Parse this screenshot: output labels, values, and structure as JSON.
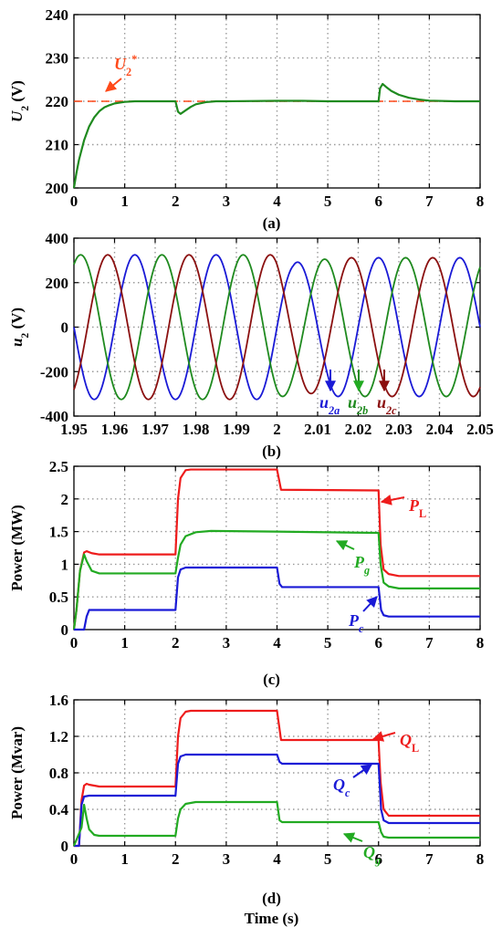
{
  "chart_data": [
    {
      "type": "line",
      "caption": "(a)",
      "ylabel_main": "U",
      "ylabel_sub": "2",
      "ylabel_unit": " (V)",
      "xlim": [
        0,
        8
      ],
      "ylim": [
        200,
        240
      ],
      "xticks": [
        "0",
        "1",
        "2",
        "3",
        "4",
        "5",
        "6",
        "7",
        "8"
      ],
      "yticks": [
        "200",
        "210",
        "220",
        "230",
        "240"
      ],
      "grid": true,
      "colors": {
        "voltage": "#1f8a1f",
        "reference": "#ff4a1a"
      },
      "reference": {
        "main": "U",
        "sub": "2",
        "sup": "*",
        "value": 220
      },
      "series": [
        {
          "x": [
            0,
            0.05,
            0.1,
            0.2,
            0.3,
            0.4,
            0.5,
            0.6,
            0.7,
            0.8,
            1.0,
            1.2,
            1.5,
            2.0,
            2.05,
            2.1,
            2.2,
            2.3,
            2.4,
            2.6,
            2.8,
            3.0,
            4.0,
            4.5,
            5.0,
            6.0,
            6.03,
            6.08,
            6.15,
            6.25,
            6.4,
            6.6,
            6.8,
            7.0,
            7.5,
            8.0
          ],
          "values": [
            200,
            203.5,
            206.5,
            211,
            214.2,
            216.3,
            217.7,
            218.6,
            219.1,
            219.5,
            219.85,
            220,
            220,
            220,
            217.6,
            217.1,
            217.9,
            218.7,
            219.3,
            219.8,
            220,
            220,
            220.1,
            220.1,
            220,
            220,
            223,
            224,
            223.3,
            222.4,
            221.5,
            220.8,
            220.4,
            220.15,
            220,
            220
          ]
        }
      ]
    },
    {
      "type": "line",
      "caption": "(b)",
      "ylabel_main": "u",
      "ylabel_sub": "2",
      "ylabel_unit": " (V)",
      "xlim": [
        1.95,
        2.05
      ],
      "ylim": [
        -400,
        400
      ],
      "xticks": [
        "1.95",
        "1.96",
        "1.97",
        "1.98",
        "1.99",
        "2",
        "2.01",
        "2.02",
        "2.03",
        "2.04",
        "2.05"
      ],
      "yticks": [
        "-400",
        "-200",
        "0",
        "200",
        "400"
      ],
      "grid": true,
      "frequency_hz": 50,
      "amplitude_before": 325,
      "amplitude_dip": 290,
      "amplitude_after": 312,
      "series": [
        {
          "main": "u",
          "sub": "2a",
          "color": "#1a1ad6",
          "phase_deg": 0
        },
        {
          "main": "u",
          "sub": "2b",
          "color": "#1f8a1f",
          "phase_deg": -120
        },
        {
          "main": "u",
          "sub": "2c",
          "color": "#8b1010",
          "phase_deg": 120
        }
      ]
    },
    {
      "type": "line",
      "caption": "(c)",
      "ylabel": "Power (MW)",
      "xlim": [
        0,
        8
      ],
      "ylim": [
        0,
        2.5
      ],
      "xticks": [
        "0",
        "1",
        "2",
        "3",
        "4",
        "5",
        "6",
        "7",
        "8"
      ],
      "yticks": [
        "0",
        "0.5",
        "1",
        "1.5",
        "2",
        "2.5"
      ],
      "grid": true,
      "series": [
        {
          "main": "P",
          "sub": "L",
          "color": "#ee1c1c",
          "x": [
            0,
            0.05,
            0.12,
            0.2,
            0.25,
            0.35,
            0.5,
            2.0,
            2.05,
            2.1,
            2.2,
            2.3,
            4.0,
            4.08,
            6.0,
            6.04,
            6.1,
            6.2,
            6.4,
            8.0
          ],
          "values": [
            0,
            0.3,
            0.9,
            1.18,
            1.2,
            1.17,
            1.15,
            1.15,
            2.0,
            2.32,
            2.44,
            2.45,
            2.45,
            2.14,
            2.13,
            1.3,
            0.92,
            0.85,
            0.82,
            0.82
          ]
        },
        {
          "main": "P",
          "sub": "g",
          "color": "#22aa22",
          "x": [
            0,
            0.05,
            0.12,
            0.2,
            0.25,
            0.35,
            0.5,
            2.0,
            2.05,
            2.1,
            2.2,
            2.4,
            2.7,
            4.0,
            6.0,
            6.04,
            6.1,
            6.2,
            6.4,
            8.0
          ],
          "values": [
            0,
            0.3,
            0.9,
            1.15,
            1.05,
            0.9,
            0.86,
            0.86,
            1.1,
            1.3,
            1.43,
            1.49,
            1.51,
            1.5,
            1.48,
            1.0,
            0.72,
            0.66,
            0.63,
            0.63
          ]
        },
        {
          "main": "P",
          "sub": "c",
          "color": "#1a1ad6",
          "x": [
            0,
            0.2,
            0.25,
            0.3,
            2.0,
            2.05,
            2.1,
            2.2,
            4.0,
            4.05,
            4.1,
            6.0,
            6.05,
            6.1,
            6.2,
            8.0
          ],
          "values": [
            0,
            0,
            0.2,
            0.3,
            0.3,
            0.8,
            0.92,
            0.95,
            0.95,
            0.7,
            0.65,
            0.65,
            0.3,
            0.22,
            0.2,
            0.2
          ]
        }
      ]
    },
    {
      "type": "line",
      "caption": "(d)",
      "ylabel": "Power (Mvar)",
      "xlabel": "Time (s)",
      "xlim": [
        0,
        8
      ],
      "ylim": [
        0,
        1.6
      ],
      "xticks": [
        "0",
        "1",
        "2",
        "3",
        "4",
        "5",
        "6",
        "7",
        "8"
      ],
      "yticks": [
        "0",
        "0.4",
        "0.8",
        "1.2",
        "1.6"
      ],
      "grid": true,
      "series": [
        {
          "main": "Q",
          "sub": "L",
          "color": "#ee1c1c",
          "x": [
            0,
            0.1,
            0.15,
            0.2,
            0.25,
            0.3,
            0.5,
            2.0,
            2.05,
            2.1,
            2.2,
            2.3,
            4.0,
            4.08,
            6.0,
            6.04,
            6.1,
            6.2,
            8.0
          ],
          "values": [
            0,
            0,
            0.5,
            0.66,
            0.68,
            0.67,
            0.65,
            0.65,
            1.2,
            1.4,
            1.47,
            1.48,
            1.48,
            1.16,
            1.16,
            0.7,
            0.4,
            0.33,
            0.33
          ]
        },
        {
          "main": "Q",
          "sub": "c",
          "color": "#1a1ad6",
          "x": [
            0,
            0.1,
            0.15,
            0.2,
            0.3,
            2.0,
            2.05,
            2.1,
            2.2,
            2.3,
            4.0,
            4.05,
            4.1,
            6.0,
            6.05,
            6.1,
            6.2,
            8.0
          ],
          "values": [
            0,
            0,
            0.45,
            0.54,
            0.55,
            0.55,
            0.9,
            0.98,
            1.0,
            1.0,
            1.0,
            0.92,
            0.9,
            0.9,
            0.4,
            0.28,
            0.25,
            0.25
          ]
        },
        {
          "main": "Q",
          "sub": "g",
          "color": "#22aa22",
          "x": [
            0,
            0.15,
            0.2,
            0.25,
            0.3,
            0.4,
            0.5,
            2.0,
            2.05,
            2.1,
            2.2,
            2.4,
            4.0,
            4.05,
            4.1,
            6.0,
            6.05,
            6.1,
            6.2,
            8.0
          ],
          "values": [
            0,
            0.2,
            0.45,
            0.3,
            0.18,
            0.12,
            0.11,
            0.11,
            0.3,
            0.4,
            0.46,
            0.48,
            0.48,
            0.28,
            0.26,
            0.26,
            0.15,
            0.1,
            0.09,
            0.09
          ]
        }
      ]
    }
  ]
}
